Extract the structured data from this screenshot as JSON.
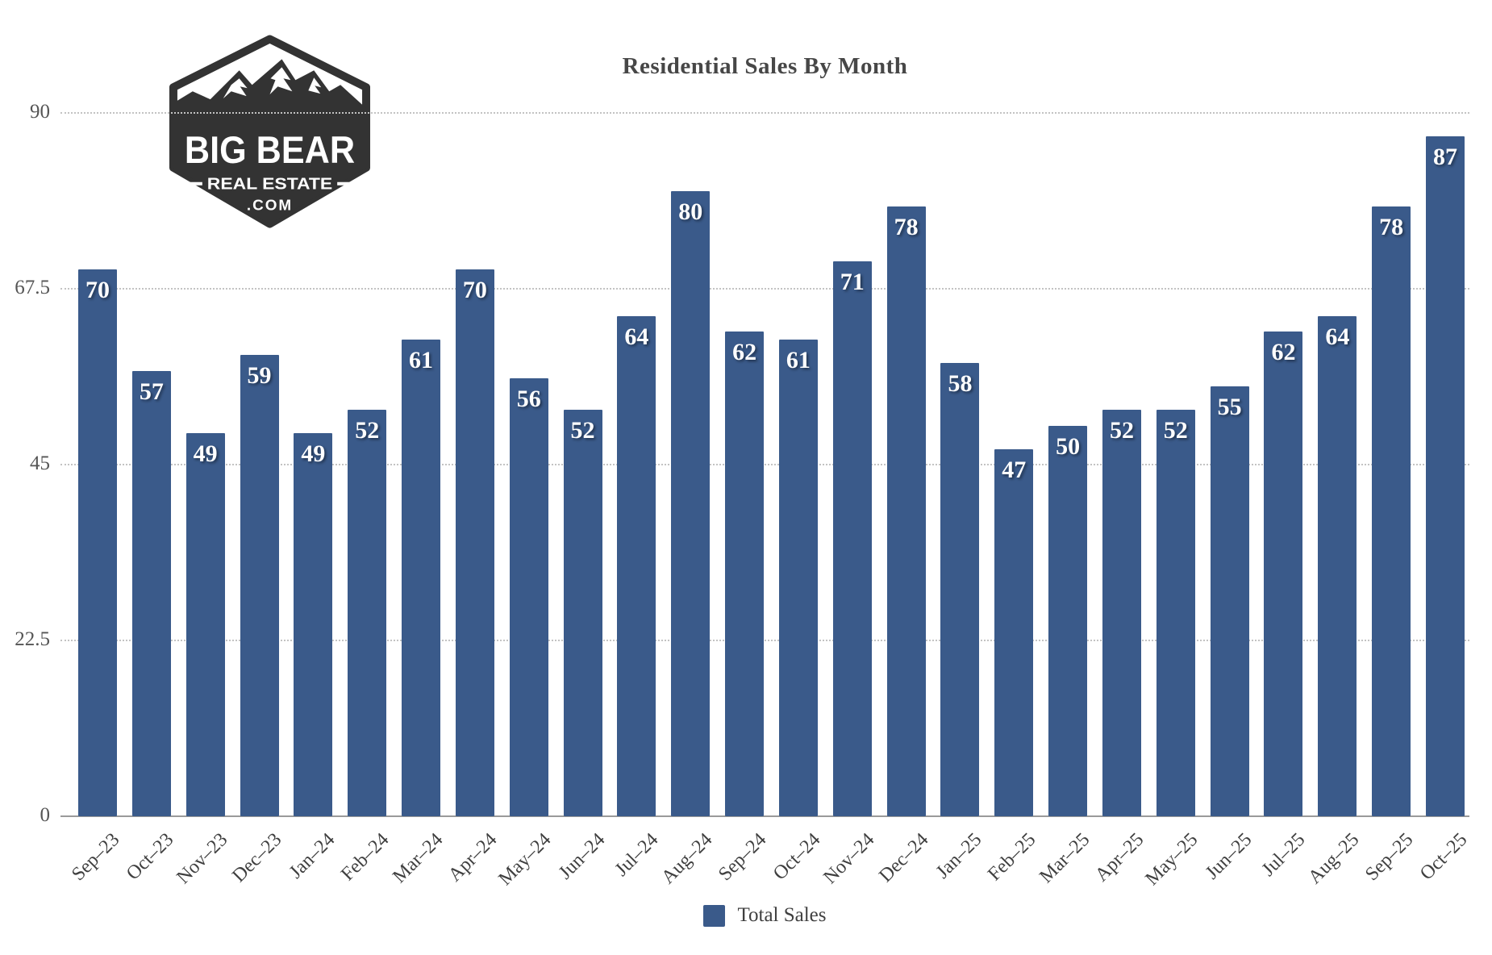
{
  "logo": {
    "line1": "BIG BEAR",
    "line2": "REAL ESTATE",
    "line3": ".COM",
    "badge_color": "#333333"
  },
  "chart_data": {
    "type": "bar",
    "title": "Residential Sales By Month",
    "categories": [
      "Sep–23",
      "Oct–23",
      "Nov–23",
      "Dec–23",
      "Jan–24",
      "Feb–24",
      "Mar–24",
      "Apr–24",
      "May–24",
      "Jun–24",
      "Jul–24",
      "Aug–24",
      "Sep–24",
      "Oct–24",
      "Nov–24",
      "Dec–24",
      "Jan–25",
      "Feb–25",
      "Mar–25",
      "Apr–25",
      "May–25",
      "Jun–25",
      "Jul–25",
      "Aug–25",
      "Sep–25",
      "Oct–25"
    ],
    "values": [
      70,
      57,
      49,
      59,
      49,
      52,
      61,
      70,
      56,
      52,
      64,
      80,
      62,
      61,
      71,
      78,
      58,
      47,
      50,
      52,
      52,
      55,
      62,
      64,
      78,
      87
    ],
    "series_name": "Total Sales",
    "xlabel": "",
    "ylabel": "",
    "ylim": [
      0,
      90
    ],
    "yticks": [
      0,
      22.5,
      45,
      67.5,
      90
    ],
    "grid": "horizontal-dotted",
    "legend_position": "bottom",
    "bar_color": "#3a5a8a",
    "value_label_color": "#ffffff",
    "value_labels_shown": true
  },
  "legend": {
    "label": "Total Sales",
    "swatch_color": "#3a5a8a"
  }
}
